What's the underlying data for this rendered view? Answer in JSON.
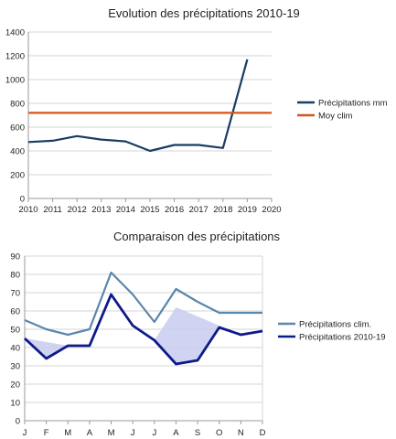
{
  "chart_data": [
    {
      "type": "line",
      "title": "Evolution des précipitations 2010-19",
      "x": [
        2010,
        2011,
        2012,
        2013,
        2014,
        2015,
        2016,
        2017,
        2018,
        2019
      ],
      "x_ticks": [
        "2010",
        "2011",
        "2012",
        "2013",
        "2014",
        "2015",
        "2016",
        "2017",
        "2018",
        "2019",
        "2020"
      ],
      "xlim": [
        2010,
        2020
      ],
      "ylim": [
        0,
        1400
      ],
      "y_ticks": [
        0,
        200,
        400,
        600,
        800,
        1000,
        1200,
        1400
      ],
      "grid": true,
      "legend_position": "right",
      "series": [
        {
          "name": "Précipitations mm",
          "color": "#1a3d63",
          "values": [
            475,
            485,
            525,
            495,
            480,
            400,
            450,
            450,
            425,
            1170
          ]
        },
        {
          "name": "Moy clim",
          "color": "#d4541a",
          "values": [
            720,
            720,
            720,
            720,
            720,
            720,
            720,
            720,
            720,
            720,
            720
          ],
          "x": [
            2010,
            2011,
            2012,
            2013,
            2014,
            2015,
            2016,
            2017,
            2018,
            2019,
            2020
          ]
        }
      ]
    },
    {
      "type": "line",
      "title": "Comparaison des précipitations",
      "categories": [
        "J",
        "F",
        "M",
        "A",
        "M",
        "J",
        "J",
        "A",
        "S",
        "O",
        "N",
        "D"
      ],
      "ylim": [
        0,
        90
      ],
      "y_ticks": [
        0,
        10,
        20,
        30,
        40,
        50,
        60,
        70,
        80,
        90
      ],
      "grid": true,
      "legend_position": "right",
      "series": [
        {
          "name": "Précipitations clim.",
          "color": "#5b86ad",
          "values": [
            55,
            50,
            47,
            50,
            81,
            69,
            54,
            72,
            65,
            59,
            59,
            59
          ]
        },
        {
          "name": "Précipitations 2010-19",
          "color": "#0d1a8a",
          "values": [
            45,
            34,
            41,
            41,
            69,
            52,
            44,
            31,
            33,
            51,
            47,
            49
          ]
        }
      ],
      "shaded_deficit_color": "#c8cbee"
    }
  ]
}
